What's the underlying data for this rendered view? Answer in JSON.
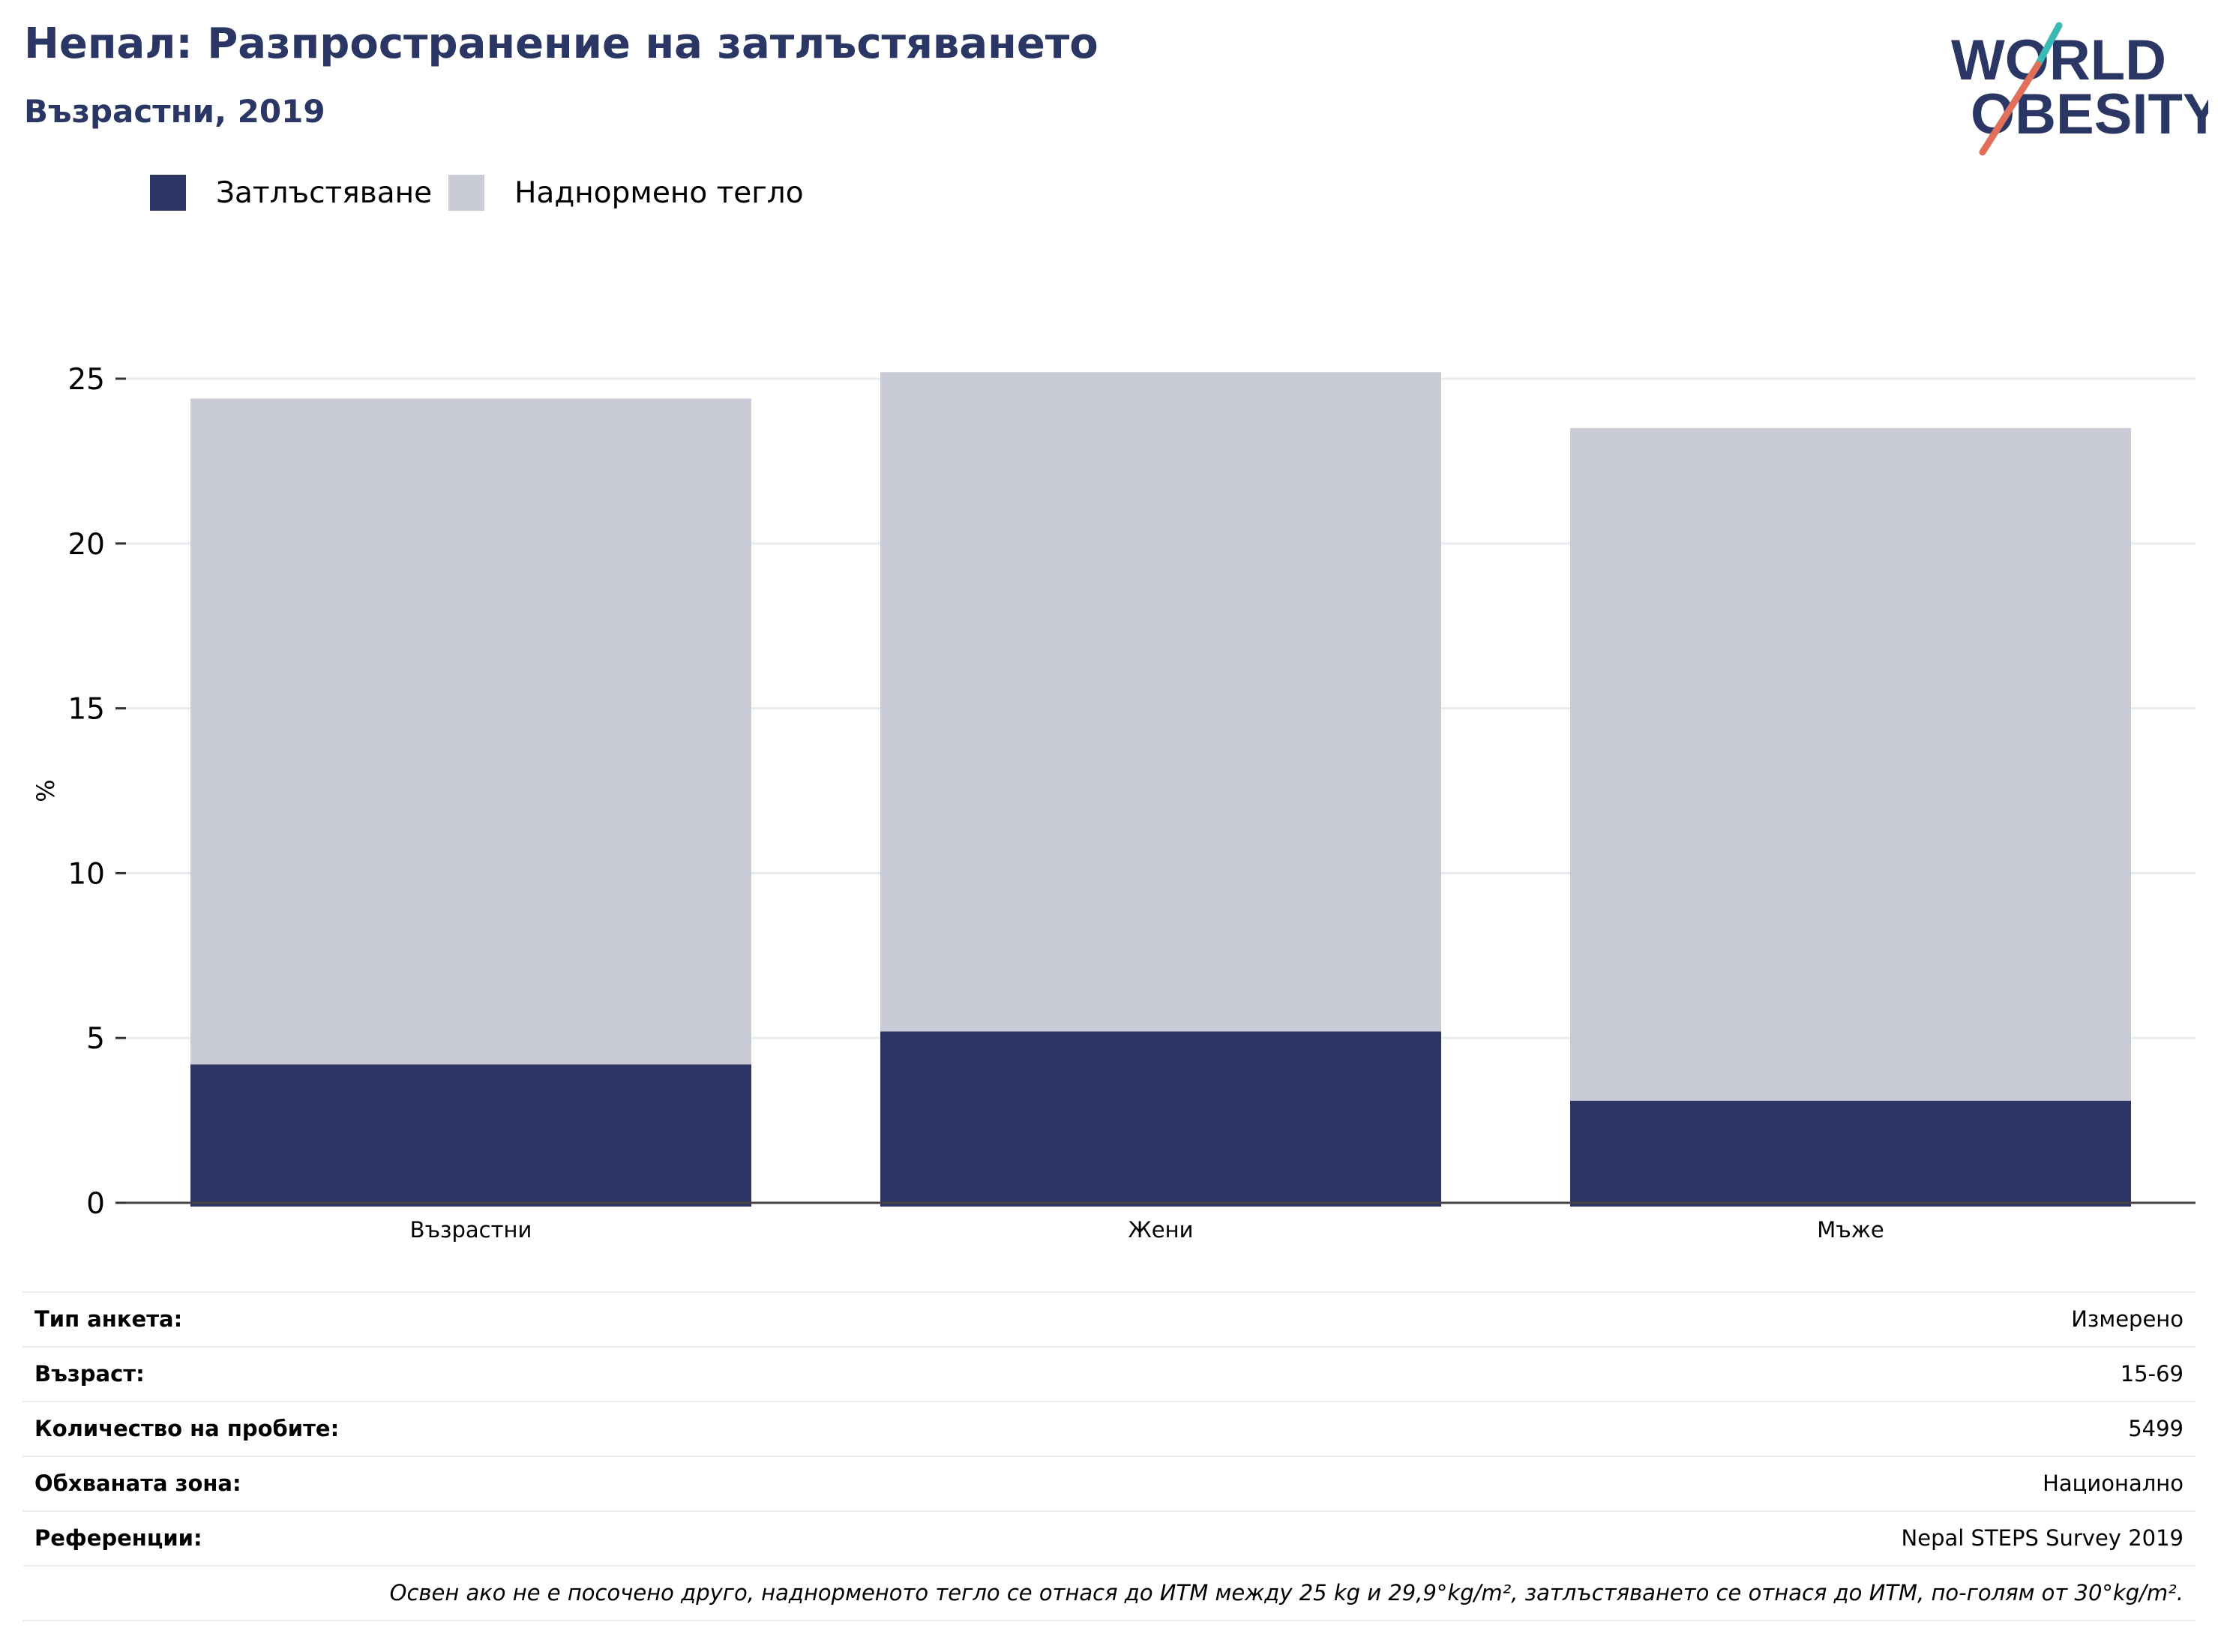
{
  "header": {
    "title": "Непал: Разпространение на затлъстяването",
    "subtitle": "Възрастни, 2019"
  },
  "logo": {
    "line1": "WORLD",
    "line2": "OBESITY",
    "colors": {
      "text": "#2a3664",
      "slash_top": "#3bb9b5",
      "slash_bottom": "#e0705a"
    }
  },
  "legend": [
    {
      "label": "Затлъстяване",
      "color": "#2b3664"
    },
    {
      "label": "Наднормено тегло",
      "color": "#c9cbd7"
    }
  ],
  "chart_data": {
    "type": "bar",
    "stacked": true,
    "categories": [
      "Възрастни",
      "Жени",
      "Мъже"
    ],
    "series": [
      {
        "name": "Затлъстяване",
        "color": "#2b3664",
        "values": [
          4.2,
          5.2,
          3.1
        ]
      },
      {
        "name": "Наднормено тегло",
        "color": "#c9cbd7",
        "values": [
          20.2,
          20.0,
          20.4
        ]
      }
    ],
    "ylabel": "%",
    "ylim": [
      0,
      25
    ],
    "yticks": [
      0,
      5,
      10,
      15,
      20,
      25
    ],
    "grid": true,
    "legend_position": "top-left"
  },
  "info": {
    "rows": [
      {
        "label": "Тип анкета:",
        "value": "Измерено"
      },
      {
        "label": "Възраст:",
        "value": "15-69"
      },
      {
        "label": "Количество на пробите:",
        "value": "5499"
      },
      {
        "label": "Обхваната зона:",
        "value": "Национално"
      },
      {
        "label": "Референции:",
        "value": "Nepal STEPS Survey 2019"
      }
    ],
    "note": "Освен ако не е посочено друго, наднорменото тегло се отнася до ИТМ между 25 kg и 29,9°kg/m², затлъстяването се отнася до ИТМ, по-голям от 30°kg/m²."
  }
}
